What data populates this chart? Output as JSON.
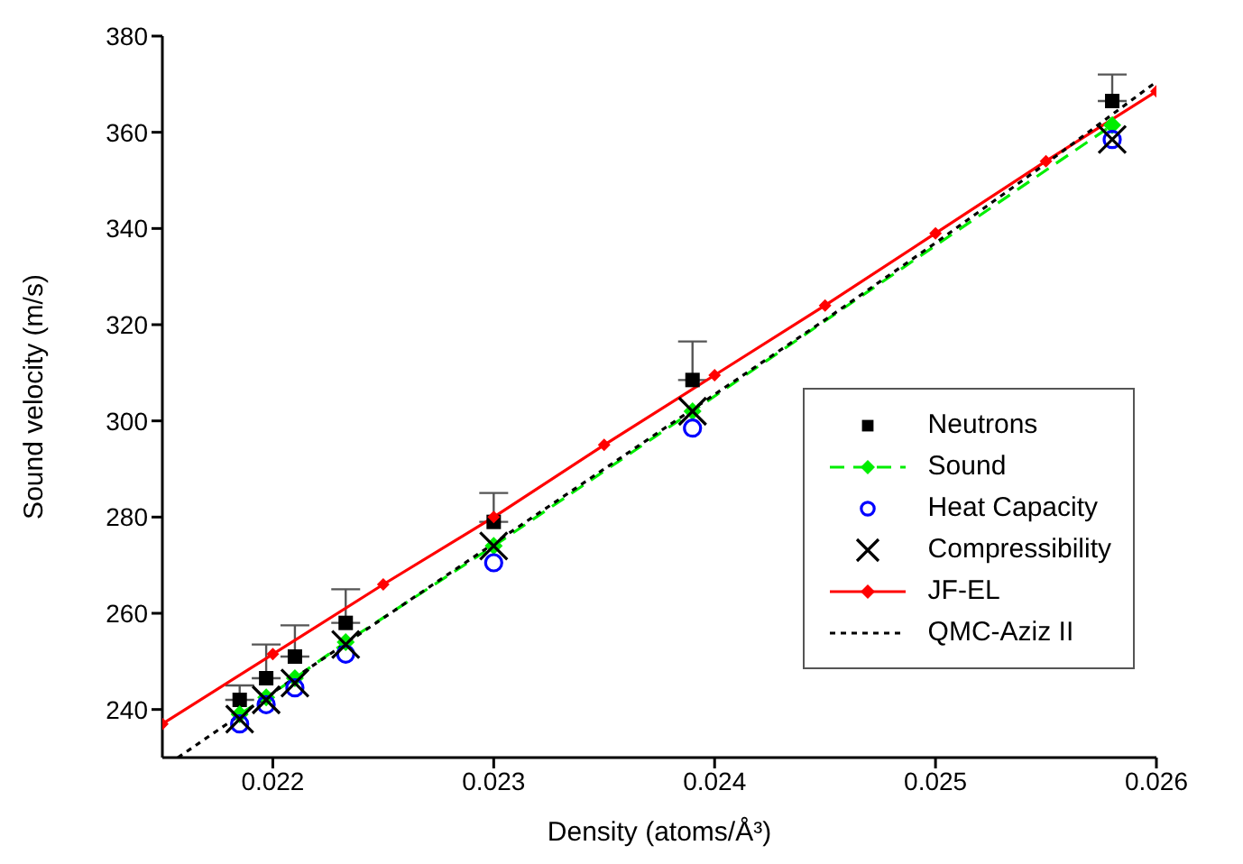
{
  "chart_data": {
    "type": "scatter",
    "xlabel": "Density (atoms/Å³)",
    "ylabel": "Sound velocity  (m/s)",
    "xlim": [
      0.0215,
      0.026
    ],
    "xticks": [
      0.022,
      0.023,
      0.024,
      0.025,
      0.026
    ],
    "ylim": [
      230,
      380
    ],
    "yticks": [
      240,
      260,
      280,
      300,
      320,
      340,
      360,
      380
    ],
    "legend": "right",
    "series": [
      {
        "name": "Neutrons",
        "marker": "square",
        "color": "#000000",
        "x": [
          0.02185,
          0.02197,
          0.0221,
          0.02233,
          0.023,
          0.0239,
          0.0258
        ],
        "values": [
          242,
          246.5,
          251,
          258,
          279,
          308.5,
          366.5
        ],
        "errors": [
          [
            242,
            245
          ],
          [
            246.5,
            253.5
          ],
          [
            251,
            257.5
          ],
          [
            258,
            265
          ],
          [
            279,
            285
          ],
          [
            308.5,
            316.5
          ],
          [
            366.5,
            372
          ]
        ]
      },
      {
        "name": "Sound",
        "type": "line",
        "marker": "diamond",
        "line_style": "dashed",
        "color": "#00ee00",
        "x": [
          0.02185,
          0.02197,
          0.0221,
          0.02233,
          0.023,
          0.0239,
          0.0258
        ],
        "values": [
          239,
          242.5,
          246.5,
          254,
          274,
          302,
          361.5
        ]
      },
      {
        "name": "Heat Capacity",
        "marker": "circle",
        "color": "#0000ff",
        "x": [
          0.02185,
          0.02197,
          0.0221,
          0.02233,
          0.023,
          0.0239,
          0.0258
        ],
        "values": [
          237,
          241,
          244.5,
          251.5,
          270.5,
          298.5,
          358.5
        ]
      },
      {
        "name": "Compressibility",
        "marker": "cross",
        "color": "#000000",
        "x": [
          0.02185,
          0.02197,
          0.0221,
          0.02233,
          0.023,
          0.0239,
          0.0258
        ],
        "values": [
          238,
          242,
          245.5,
          253.5,
          274,
          302,
          358.5
        ]
      },
      {
        "name": "JF-EL",
        "type": "line",
        "marker": "diamond",
        "line_style": "solid",
        "color": "#ff0000",
        "x": [
          0.0215,
          0.022,
          0.0225,
          0.023,
          0.0235,
          0.024,
          0.0245,
          0.025,
          0.0255,
          0.026
        ],
        "values": [
          237,
          251.5,
          266,
          280,
          295,
          309.5,
          324,
          339,
          354,
          368.5
        ]
      },
      {
        "name": "QMC-Aziz II",
        "type": "line",
        "marker": "none",
        "line_style": "dotted",
        "color": "#000000",
        "x": [
          0.02157,
          0.022,
          0.0225,
          0.023,
          0.0235,
          0.024,
          0.0245,
          0.025,
          0.0255,
          0.026
        ],
        "values": [
          230,
          243.5,
          259,
          274.5,
          290,
          305.5,
          321,
          337,
          353.5,
          370.5
        ]
      }
    ]
  }
}
